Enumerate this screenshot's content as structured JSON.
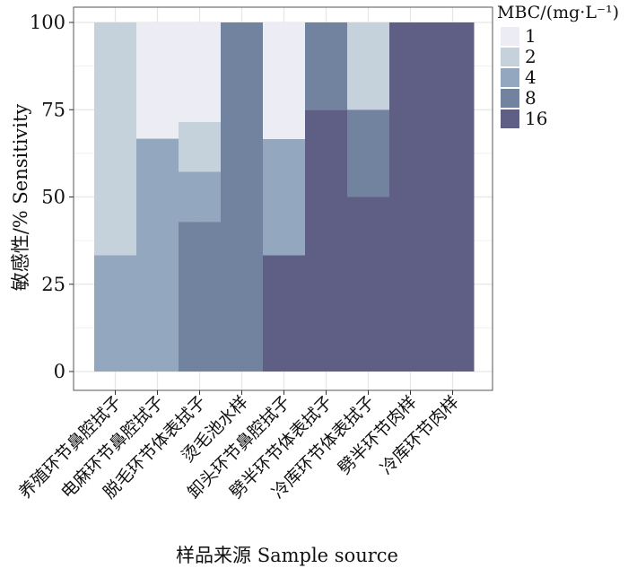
{
  "chart_data": {
    "type": "bar",
    "stacked": true,
    "xlabel": "样品来源 Sample source",
    "ylabel": "敏感性/% Sensitivity",
    "ylim": [
      0,
      100
    ],
    "yticks": [
      0,
      25,
      50,
      75,
      100
    ],
    "grid": true,
    "legend_title": "MBC/(mg·L⁻¹)",
    "legend_position": "top-right",
    "categories": [
      "养殖环节鼻腔拭子",
      "电麻环节鼻腔拭子",
      "脱毛环节体表拭子",
      "烫毛池水样",
      "卸头环节鼻腔拭子",
      "劈半环节体表拭子",
      "冷库环节体表拭子",
      "劈半环节肉样",
      "冷库环节肉样"
    ],
    "series": [
      {
        "name": "16",
        "color": "#5f5f85",
        "values": [
          0,
          0,
          0,
          0,
          33.3,
          75,
          50,
          100,
          100
        ]
      },
      {
        "name": "8",
        "color": "#72839f",
        "values": [
          0,
          0,
          42.9,
          100,
          0,
          25,
          25,
          0,
          0
        ]
      },
      {
        "name": "4",
        "color": "#93a8be",
        "values": [
          33.3,
          66.7,
          14.3,
          0,
          33.3,
          0,
          0,
          0,
          0
        ]
      },
      {
        "name": "2",
        "color": "#c5d1db",
        "values": [
          66.7,
          0,
          14.3,
          0,
          0,
          0,
          25,
          0,
          0
        ]
      },
      {
        "name": "1",
        "color": "#ececf5",
        "values": [
          0,
          33.3,
          28.5,
          0,
          33.4,
          0,
          0,
          0,
          0
        ]
      }
    ],
    "legend_order": [
      "1",
      "2",
      "4",
      "8",
      "16"
    ]
  }
}
